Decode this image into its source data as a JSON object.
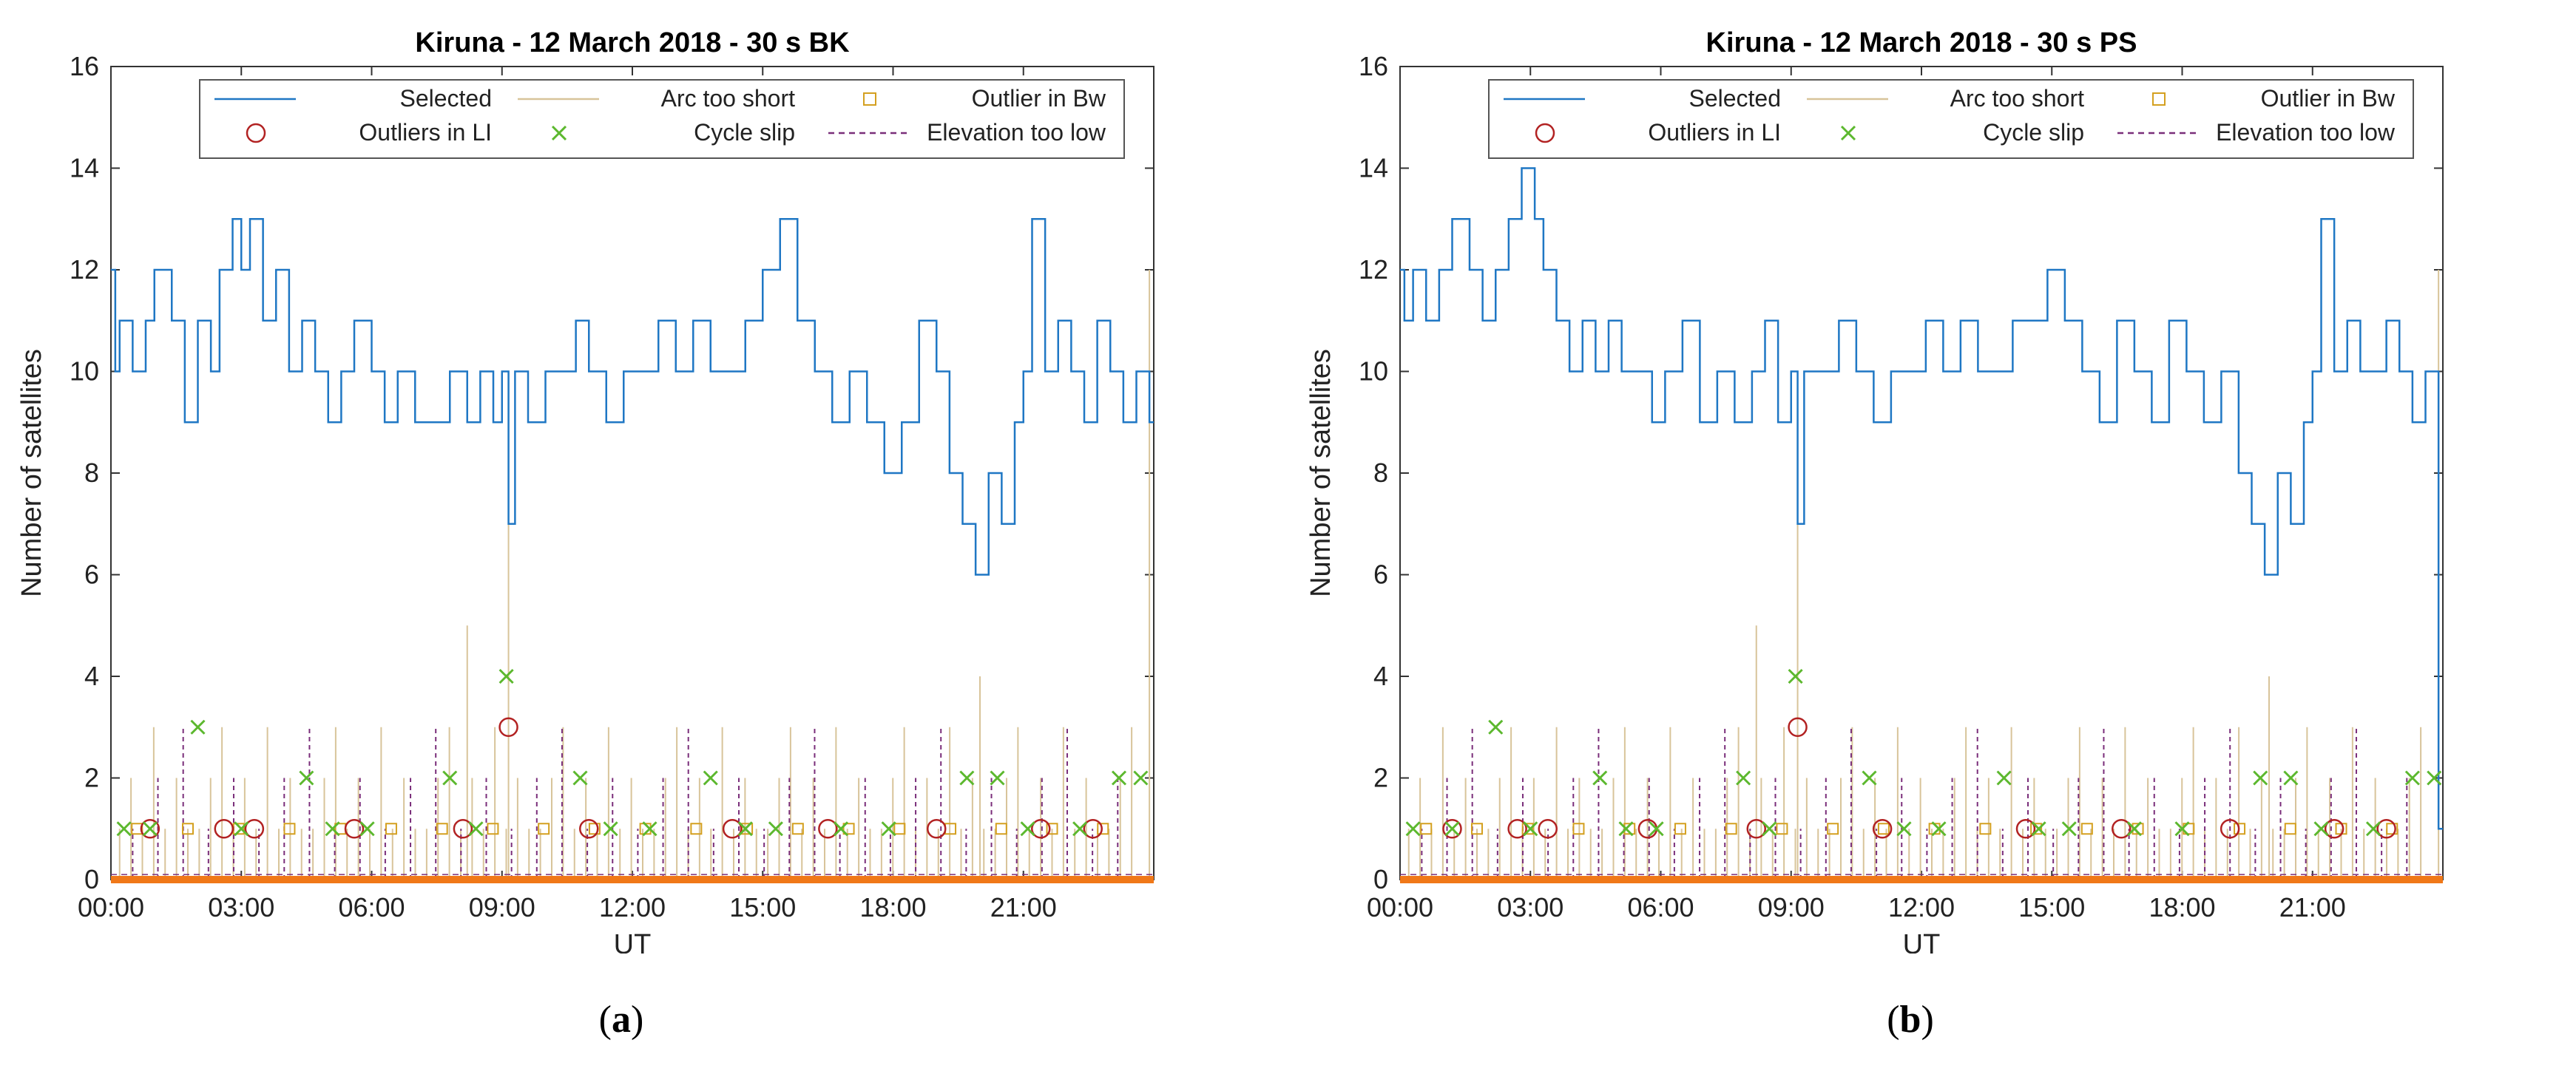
{
  "panels": [
    {
      "caption_open": "(",
      "caption_letter": "a",
      "caption_close": ")"
    },
    {
      "caption_open": "(",
      "caption_letter": "b",
      "caption_close": ")"
    }
  ],
  "colors": {
    "selected": "#1f77c4",
    "arc_too_short": "#d8c49a",
    "outlier_bw": "#d4a020",
    "outliers_li": "#b22222",
    "cycle_slip": "#5cb82e",
    "elevation_too_low": "#7a2e7a",
    "baseline": "#f07818"
  },
  "chart_data": [
    {
      "type": "line",
      "title": "Kiruna - 12 March 2018 - 30 s BK",
      "xlabel": "UT",
      "ylabel": "Number of satellites",
      "xlim": [
        0,
        24
      ],
      "ylim": [
        0,
        16
      ],
      "xticks": [
        0,
        3,
        6,
        9,
        12,
        15,
        18,
        21
      ],
      "xtick_labels": [
        "00:00",
        "03:00",
        "06:00",
        "09:00",
        "12:00",
        "15:00",
        "18:00",
        "21:00"
      ],
      "yticks": [
        0,
        2,
        4,
        6,
        8,
        10,
        12,
        14,
        16
      ],
      "ytick_labels": [
        "0",
        "2",
        "4",
        "6",
        "8",
        "10",
        "12",
        "14",
        "16"
      ],
      "legend": [
        "Selected",
        "Arc too short",
        "Outlier in Bw",
        "Outliers in LI",
        "Cycle slip",
        "Elevation too low"
      ],
      "legend_location": "top-center",
      "series": [
        {
          "name": "Selected",
          "x": [
            0,
            0.1,
            0.2,
            0.5,
            0.8,
            1.0,
            1.4,
            1.7,
            2.0,
            2.3,
            2.5,
            2.8,
            3.0,
            3.2,
            3.5,
            3.8,
            4.1,
            4.4,
            4.7,
            5.0,
            5.3,
            5.6,
            6.0,
            6.3,
            6.6,
            7.0,
            7.4,
            7.8,
            8.2,
            8.5,
            8.8,
            9.0,
            9.15,
            9.3,
            9.6,
            10.0,
            10.3,
            10.7,
            11.0,
            11.4,
            11.8,
            12.2,
            12.6,
            13.0,
            13.4,
            13.8,
            14.2,
            14.6,
            15.0,
            15.4,
            15.8,
            16.2,
            16.6,
            17.0,
            17.4,
            17.8,
            18.2,
            18.6,
            19.0,
            19.3,
            19.6,
            19.9,
            20.2,
            20.5,
            20.8,
            21.0,
            21.2,
            21.5,
            21.8,
            22.1,
            22.4,
            22.7,
            23.0,
            23.3,
            23.6,
            23.9
          ],
          "y": [
            12,
            10,
            11,
            10,
            11,
            12,
            11,
            9,
            11,
            10,
            12,
            13,
            12,
            13,
            11,
            12,
            10,
            11,
            10,
            9,
            10,
            11,
            10,
            9,
            10,
            9,
            9,
            10,
            9,
            10,
            9,
            10,
            7,
            10,
            9,
            10,
            10,
            11,
            10,
            9,
            10,
            10,
            11,
            10,
            11,
            10,
            10,
            11,
            12,
            13,
            11,
            10,
            9,
            10,
            9,
            8,
            9,
            11,
            10,
            8,
            7,
            6,
            8,
            7,
            9,
            10,
            13,
            10,
            11,
            10,
            9,
            11,
            10,
            9,
            10,
            9
          ]
        },
        {
          "name": "Cycle slip",
          "x": [
            0.3,
            0.9,
            2.0,
            3.0,
            4.5,
            5.1,
            5.9,
            7.8,
            8.4,
            9.1,
            10.8,
            11.5,
            12.4,
            13.8,
            14.6,
            15.3,
            16.8,
            17.9,
            19.7,
            20.4,
            21.1,
            22.3,
            23.2,
            23.7
          ],
          "y": [
            1,
            1,
            3,
            1,
            2,
            1,
            1,
            2,
            1,
            4,
            2,
            1,
            1,
            2,
            1,
            1,
            1,
            1,
            2,
            2,
            1,
            1,
            2,
            2
          ]
        },
        {
          "name": "Outliers in LI",
          "x": [
            0.9,
            2.6,
            3.3,
            5.6,
            8.1,
            9.15,
            11.0,
            14.3,
            16.5,
            19.0,
            21.4,
            22.6
          ],
          "y": [
            1,
            1,
            1,
            1,
            1,
            3,
            1,
            1,
            1,
            1,
            1,
            1
          ]
        }
      ]
    },
    {
      "type": "line",
      "title": "Kiruna - 12 March 2018 - 30 s PS",
      "xlabel": "UT",
      "ylabel": "Number of satellites",
      "xlim": [
        0,
        24
      ],
      "ylim": [
        0,
        16
      ],
      "xticks": [
        0,
        3,
        6,
        9,
        12,
        15,
        18,
        21
      ],
      "xtick_labels": [
        "00:00",
        "03:00",
        "06:00",
        "09:00",
        "12:00",
        "15:00",
        "18:00",
        "21:00"
      ],
      "yticks": [
        0,
        2,
        4,
        6,
        8,
        10,
        12,
        14,
        16
      ],
      "ytick_labels": [
        "0",
        "2",
        "4",
        "6",
        "8",
        "10",
        "12",
        "14",
        "16"
      ],
      "legend": [
        "Selected",
        "Arc too short",
        "Outlier in Bw",
        "Outliers in LI",
        "Cycle slip",
        "Elevation too low"
      ],
      "legend_location": "top-center",
      "series": [
        {
          "name": "Selected",
          "x": [
            0,
            0.1,
            0.3,
            0.6,
            0.9,
            1.2,
            1.6,
            1.9,
            2.2,
            2.5,
            2.8,
            3.1,
            3.3,
            3.6,
            3.9,
            4.2,
            4.5,
            4.8,
            5.1,
            5.4,
            5.8,
            6.1,
            6.5,
            6.9,
            7.3,
            7.7,
            8.1,
            8.4,
            8.7,
            9.0,
            9.15,
            9.3,
            9.7,
            10.1,
            10.5,
            10.9,
            11.3,
            11.7,
            12.1,
            12.5,
            12.9,
            13.3,
            13.7,
            14.1,
            14.5,
            14.9,
            15.3,
            15.7,
            16.1,
            16.5,
            16.9,
            17.3,
            17.7,
            18.1,
            18.5,
            18.9,
            19.3,
            19.6,
            19.9,
            20.2,
            20.5,
            20.8,
            21.0,
            21.2,
            21.5,
            21.8,
            22.1,
            22.4,
            22.7,
            23.0,
            23.3,
            23.6,
            23.9
          ],
          "y": [
            12,
            11,
            12,
            11,
            12,
            13,
            12,
            11,
            12,
            13,
            14,
            13,
            12,
            11,
            10,
            11,
            10,
            11,
            10,
            10,
            9,
            10,
            11,
            9,
            10,
            9,
            10,
            11,
            9,
            10,
            7,
            10,
            10,
            11,
            10,
            9,
            10,
            10,
            11,
            10,
            11,
            10,
            10,
            11,
            11,
            12,
            11,
            10,
            9,
            11,
            10,
            9,
            11,
            10,
            9,
            10,
            8,
            7,
            6,
            8,
            7,
            9,
            10,
            13,
            10,
            11,
            10,
            10,
            11,
            10,
            9,
            10,
            1
          ]
        },
        {
          "name": "Cycle slip",
          "x": [
            0.3,
            1.2,
            2.2,
            3.0,
            4.6,
            5.2,
            5.9,
            7.9,
            8.5,
            9.1,
            10.8,
            11.6,
            12.4,
            13.9,
            14.7,
            15.4,
            16.9,
            18.0,
            19.8,
            20.5,
            21.2,
            22.4,
            23.3,
            23.8
          ],
          "y": [
            1,
            1,
            3,
            1,
            2,
            1,
            1,
            2,
            1,
            4,
            2,
            1,
            1,
            2,
            1,
            1,
            1,
            1,
            2,
            2,
            1,
            1,
            2,
            2
          ]
        },
        {
          "name": "Outliers in LI",
          "x": [
            1.2,
            2.7,
            3.4,
            5.7,
            8.2,
            9.15,
            11.1,
            14.4,
            16.6,
            19.1,
            21.5,
            22.7
          ],
          "y": [
            1,
            1,
            1,
            1,
            1,
            3,
            1,
            1,
            1,
            1,
            1,
            1
          ]
        }
      ]
    }
  ]
}
